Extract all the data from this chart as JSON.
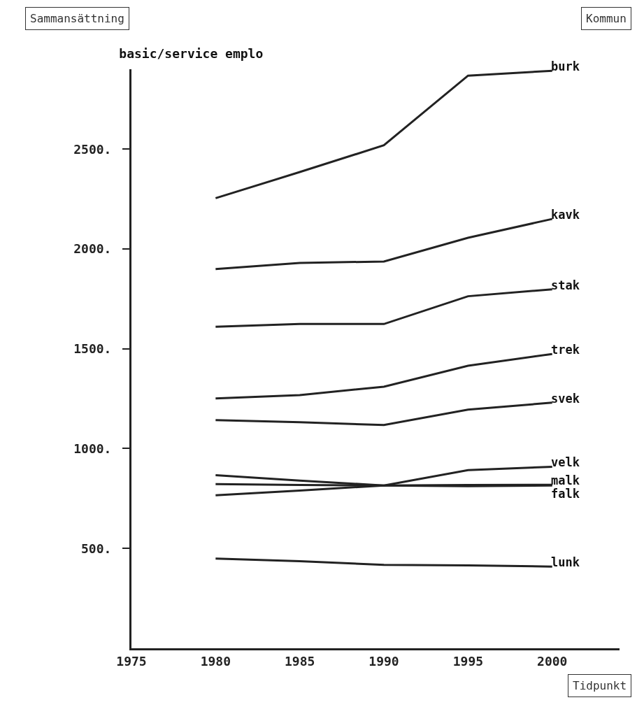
{
  "chart_data": {
    "type": "line",
    "title": "basic/service emplo",
    "annotations": [
      "Sammansättning",
      "Kommun"
    ],
    "xlabel": "Tidpunkt",
    "x": [
      1980,
      1985,
      1990,
      1995,
      2000
    ],
    "series": [
      {
        "name": "burk",
        "color": "#222222",
        "values": [
          2254,
          2385,
          2519,
          2868,
          2892
        ]
      },
      {
        "name": "kavk",
        "color": "#222222",
        "values": [
          1899,
          1930,
          1937,
          2056,
          2150
        ]
      },
      {
        "name": "stak",
        "color": "#222222",
        "values": [
          1610,
          1624,
          1624,
          1763,
          1798
        ]
      },
      {
        "name": "trek",
        "color": "#222222",
        "values": [
          1251,
          1268,
          1310,
          1415,
          1474
        ]
      },
      {
        "name": "svek",
        "color": "#222222",
        "values": [
          1143,
          1132,
          1118,
          1195,
          1230
        ]
      },
      {
        "name": "velk",
        "color": "#222222",
        "values": [
          766,
          790,
          815,
          892,
          909
        ]
      },
      {
        "name": "falk",
        "color": "#222222",
        "values": [
          867,
          840,
          815,
          812,
          815
        ]
      },
      {
        "name": "malk",
        "color": "#222222",
        "values": [
          822,
          818,
          815,
          818,
          819
        ]
      },
      {
        "name": "lunk",
        "color": "#222222",
        "values": [
          449,
          436,
          418,
          415,
          409
        ]
      }
    ],
    "xlim": [
      1975,
      2004
    ],
    "xticks": [
      1975,
      1980,
      1985,
      1990,
      1995,
      2000
    ],
    "ylim": [
      0,
      2900
    ],
    "yticks": [
      {
        "value": 500,
        "label": "500."
      },
      {
        "value": 1000,
        "label": "1000."
      },
      {
        "value": 1500,
        "label": "1500."
      },
      {
        "value": 2000,
        "label": "2000."
      },
      {
        "value": 2500,
        "label": "2500."
      }
    ],
    "grid": false,
    "legend": false,
    "marker": "none",
    "line_style": "solid"
  }
}
